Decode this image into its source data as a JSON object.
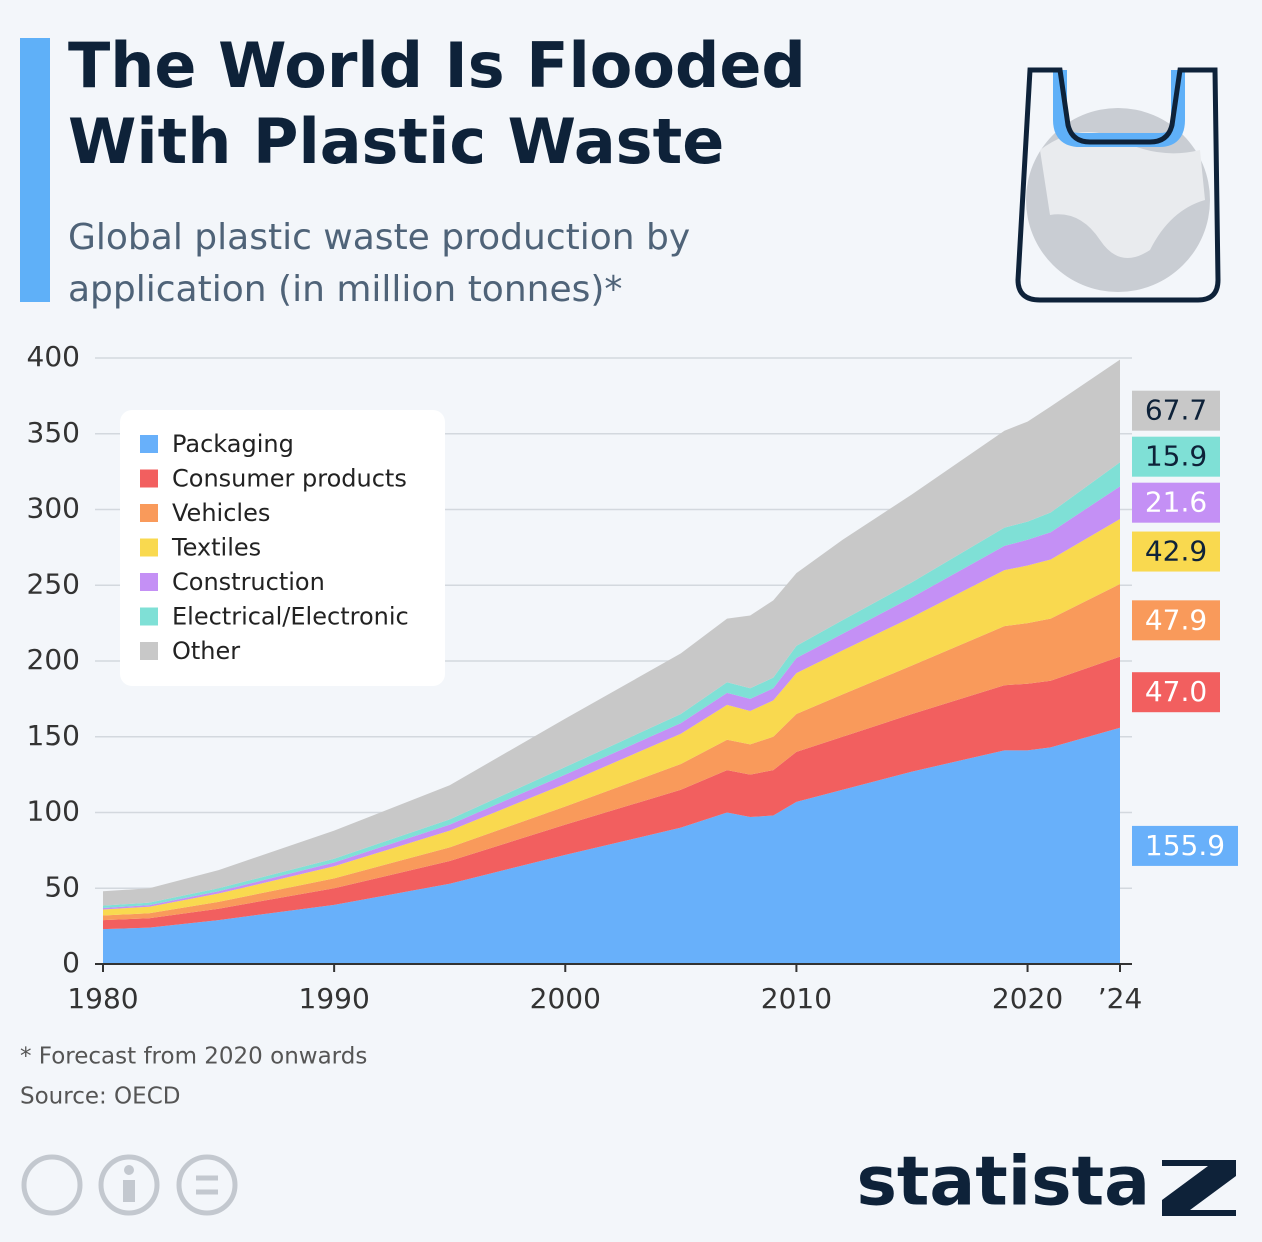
{
  "header": {
    "title": "The World Is Flooded With Plastic Waste",
    "subtitle": "Global plastic waste production by application (in million tonnes)*"
  },
  "chart_data": {
    "type": "stacked_area",
    "x": [
      1980,
      1982,
      1985,
      1990,
      1995,
      2000,
      2005,
      2007,
      2008,
      2009,
      2010,
      2012,
      2015,
      2019,
      2020,
      2021,
      2024
    ],
    "xlim": [
      1980,
      2024
    ],
    "xticks": [
      1980,
      1990,
      2000,
      2010,
      2020,
      {
        "value": 2024,
        "label": "’24"
      }
    ],
    "ylim": [
      0,
      400
    ],
    "yticks": [
      0,
      50,
      100,
      150,
      200,
      250,
      300,
      350,
      400
    ],
    "grid": true,
    "legend": "upper left",
    "series": [
      {
        "name": "Packaging",
        "color": "#68b0fa",
        "values": [
          23,
          24,
          29,
          39,
          53,
          72,
          90,
          100,
          97,
          98,
          107,
          115,
          127,
          141,
          141,
          143,
          155.9
        ],
        "value_labels": [
          null,
          null,
          null,
          null,
          null,
          null,
          null,
          null,
          null,
          null,
          null,
          null,
          null,
          null,
          null,
          null,
          "155.9"
        ]
      },
      {
        "name": "Consumer products",
        "color": "#f25f5f",
        "values": [
          6,
          6.2,
          7.5,
          11,
          15,
          20,
          25,
          28,
          28,
          30,
          33,
          35,
          38,
          43,
          44,
          44,
          47
        ],
        "value_labels": [
          null,
          null,
          null,
          null,
          null,
          null,
          null,
          null,
          null,
          null,
          null,
          null,
          null,
          null,
          null,
          null,
          "47.0"
        ]
      },
      {
        "name": "Vehicles",
        "color": "#f99a5b",
        "values": [
          3,
          3.3,
          4.5,
          6.5,
          9,
          12,
          17,
          20,
          20,
          22,
          25,
          28,
          32,
          39,
          40,
          41,
          47.9
        ],
        "value_labels": [
          null,
          null,
          null,
          null,
          null,
          null,
          null,
          null,
          null,
          null,
          null,
          null,
          null,
          null,
          null,
          null,
          "47.9"
        ]
      },
      {
        "name": "Textiles",
        "color": "#f9d94f",
        "values": [
          4,
          4.3,
          5.5,
          8,
          11,
          15,
          20,
          23,
          22,
          24,
          27,
          29,
          32,
          37,
          38,
          39,
          42.9
        ],
        "value_labels": [
          null,
          null,
          null,
          null,
          null,
          null,
          null,
          null,
          null,
          null,
          null,
          null,
          null,
          null,
          null,
          null,
          "42.9"
        ]
      },
      {
        "name": "Construction",
        "color": "#c490f5",
        "values": [
          1,
          1.1,
          1.5,
          2.5,
          4,
          6,
          7,
          8,
          8,
          8,
          10,
          11,
          13,
          16,
          17,
          18,
          21.6
        ],
        "value_labels": [
          null,
          null,
          null,
          null,
          null,
          null,
          null,
          null,
          null,
          null,
          null,
          null,
          null,
          null,
          null,
          null,
          "21.6"
        ]
      },
      {
        "name": "Electrical/Electronic",
        "color": "#7fe0d6",
        "values": [
          1.5,
          1.6,
          2,
          2.5,
          3.5,
          5,
          6,
          7,
          7,
          7,
          8,
          9,
          10,
          12,
          12,
          13,
          15.9
        ],
        "value_labels": [
          null,
          null,
          null,
          null,
          null,
          null,
          null,
          null,
          null,
          null,
          null,
          null,
          null,
          null,
          null,
          null,
          "15.9"
        ]
      },
      {
        "name": "Other",
        "color": "#c8c8c8",
        "values": [
          9.5,
          9.5,
          12,
          18.5,
          22.5,
          32,
          40,
          42,
          48,
          51,
          48,
          53,
          58,
          64,
          66,
          70,
          67.7
        ],
        "value_labels": [
          null,
          null,
          null,
          null,
          null,
          null,
          null,
          null,
          null,
          null,
          null,
          null,
          null,
          null,
          null,
          null,
          "67.7"
        ]
      }
    ]
  },
  "footer": {
    "note": "* Forecast from 2020 onwards",
    "source": "Source: OECD",
    "brand": "statista"
  }
}
